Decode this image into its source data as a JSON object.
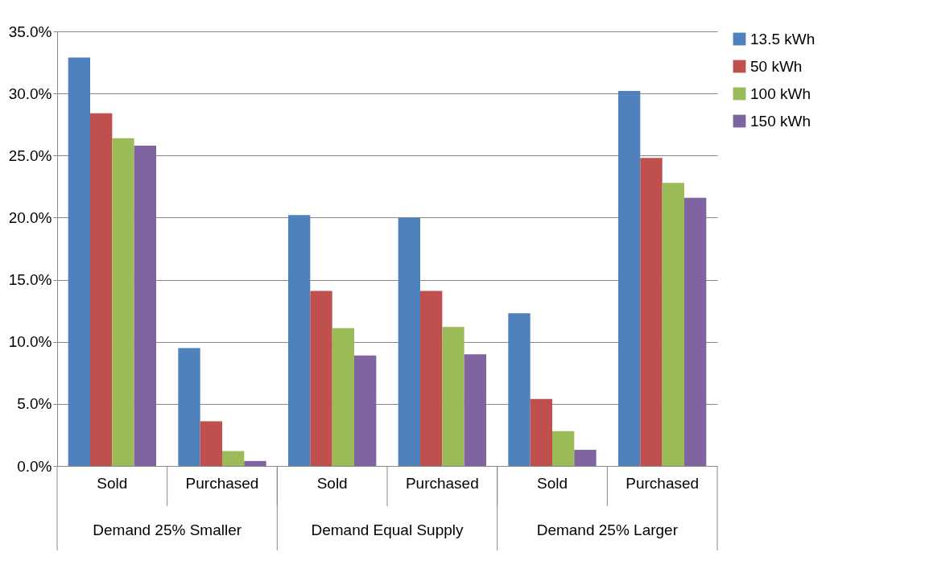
{
  "chart_data": {
    "type": "bar",
    "categories": [
      "Sold",
      "Purchased",
      "Sold",
      "Purchased",
      "Sold",
      "Purchased"
    ],
    "annotations": [
      "Demand 25% Smaller",
      "Demand Equal Supply",
      "Demand 25% Larger"
    ],
    "series": [
      {
        "name": "13.5 kWh",
        "color": "#4f81bd",
        "values": [
          32.9,
          9.5,
          20.2,
          20.0,
          12.3,
          30.2
        ]
      },
      {
        "name": "50 kWh",
        "color": "#c0504d",
        "values": [
          28.4,
          3.6,
          14.1,
          14.1,
          5.4,
          24.8
        ]
      },
      {
        "name": "100 kWh",
        "color": "#9bbb59",
        "values": [
          26.4,
          1.2,
          11.1,
          11.2,
          2.8,
          22.8
        ]
      },
      {
        "name": "150 kWh",
        "color": "#8064a2",
        "values": [
          25.8,
          0.4,
          8.9,
          9.0,
          1.3,
          21.6
        ]
      }
    ],
    "ylim": [
      0,
      35
    ],
    "yticks": [
      {
        "value": 0,
        "label": "0.0%"
      },
      {
        "value": 5,
        "label": "5.0%"
      },
      {
        "value": 10,
        "label": "10.0%"
      },
      {
        "value": 15,
        "label": "15.0%"
      },
      {
        "value": 20,
        "label": "20.0%"
      },
      {
        "value": 25,
        "label": "25.0%"
      },
      {
        "value": 30,
        "label": "30.0%"
      },
      {
        "value": 35,
        "label": "35.0%"
      }
    ],
    "grid": "y",
    "legend": "right"
  }
}
